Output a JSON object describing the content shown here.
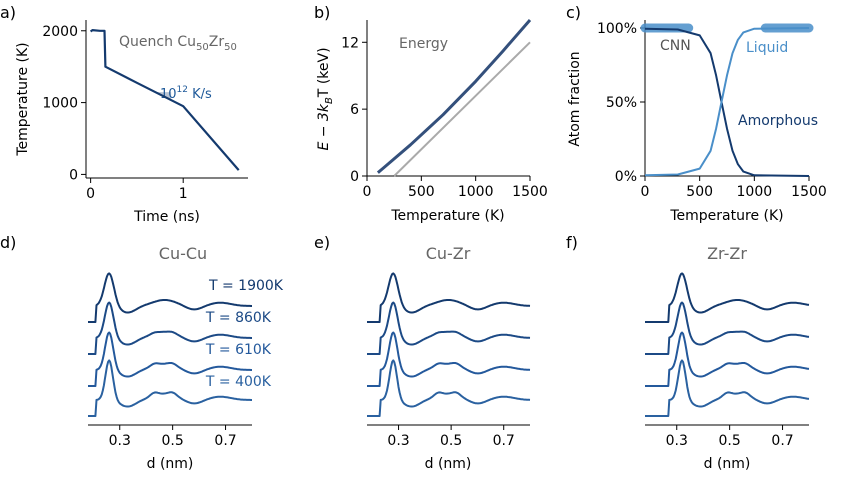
{
  "colors": {
    "dark": "#143a6e",
    "mid": "#2a61a0",
    "light": "#4a8fc9",
    "grey": "#aaaaaa",
    "annot_grey": "#666666",
    "annot_blue": "#1f5a9a"
  },
  "chart_data": [
    {
      "id": "a",
      "type": "line",
      "panel_label": "a)",
      "title_parts": [
        "Quench Cu",
        "50",
        "Zr",
        "50"
      ],
      "xlabel": "Time (ns)",
      "ylabel": "Temperature (K)",
      "xlim": [
        -0.05,
        1.7
      ],
      "ylim": [
        -50,
        2150
      ],
      "xticks": [
        0,
        1
      ],
      "yticks": [
        0,
        1000,
        2000
      ],
      "rate_label_parts": [
        "10",
        "12",
        " K/s"
      ],
      "series": [
        {
          "name": "quench",
          "x": [
            0.0,
            0.02,
            0.1,
            0.15,
            0.16,
            0.5,
            1.0,
            1.6
          ],
          "y": [
            1990,
            2010,
            2000,
            2000,
            1500,
            1275,
            950,
            60
          ]
        }
      ]
    },
    {
      "id": "b",
      "type": "line",
      "panel_label": "b)",
      "annotation": "Energy",
      "xlabel": "Temperature (K)",
      "ylabel_parts": [
        "E − 3k",
        "B",
        "T (keV)"
      ],
      "xlim": [
        0,
        1500
      ],
      "ylim": [
        0,
        14
      ],
      "xticks": [
        0,
        500,
        1000,
        1500
      ],
      "yticks": [
        0,
        6,
        12
      ],
      "series": [
        {
          "name": "reference",
          "x": [
            250,
            1500
          ],
          "y": [
            0,
            12.0
          ]
        },
        {
          "name": "energy",
          "x": [
            100,
            400,
            700,
            1000,
            1250,
            1500
          ],
          "y": [
            0.3,
            2.8,
            5.5,
            8.5,
            11.2,
            14.0
          ]
        }
      ]
    },
    {
      "id": "c",
      "type": "line",
      "panel_label": "c)",
      "xlabel": "Temperature (K)",
      "ylabel": "Atom fraction",
      "xlim": [
        0,
        1500
      ],
      "ylim": [
        0,
        1.05
      ],
      "xticks": [
        0,
        500,
        1000,
        1500
      ],
      "yticks": [
        0,
        0.5,
        1.0
      ],
      "ytick_labels": [
        "0%",
        "50%",
        "100%"
      ],
      "labels": {
        "cnn": "CNN",
        "liquid": "Liquid",
        "amorphous": "Amorphous"
      },
      "series": [
        {
          "name": "Amorphous",
          "x": [
            0,
            300,
            500,
            600,
            650,
            700,
            750,
            800,
            850,
            900,
            1000,
            1500
          ],
          "y": [
            0.995,
            0.99,
            0.95,
            0.83,
            0.68,
            0.5,
            0.32,
            0.17,
            0.08,
            0.03,
            0.005,
            0.0
          ]
        },
        {
          "name": "Liquid",
          "x": [
            0,
            300,
            500,
            600,
            650,
            700,
            750,
            800,
            850,
            900,
            1000,
            1500
          ],
          "y": [
            0.005,
            0.01,
            0.05,
            0.17,
            0.32,
            0.5,
            0.68,
            0.83,
            0.92,
            0.97,
            0.995,
            1.0
          ]
        }
      ],
      "training_bands": [
        {
          "name": "CNN training",
          "x": [
            0,
            400
          ],
          "y": 1.0
        },
        {
          "name": "Liquid training",
          "x": [
            1100,
            1500
          ],
          "y": 1.0
        }
      ]
    },
    {
      "id": "d",
      "type": "line",
      "panel_label": "d)",
      "title": "Cu-Cu",
      "xlabel": "d (nm)",
      "xlim": [
        0.18,
        0.8
      ],
      "xticks": [
        0.3,
        0.5,
        0.7
      ],
      "xtick_labels": [
        "0.3",
        "0.5",
        "0.7"
      ],
      "peak": 0.26,
      "temperatures": [
        "T = 1900K",
        "T = 860K",
        "T = 610K",
        "T = 400K"
      ]
    },
    {
      "id": "e",
      "type": "line",
      "panel_label": "e)",
      "title": "Cu-Zr",
      "xlabel": "d (nm)",
      "xlim": [
        0.18,
        0.8
      ],
      "xticks": [
        0.3,
        0.5,
        0.7
      ],
      "xtick_labels": [
        "0.3",
        "0.5",
        "0.7"
      ],
      "peak": 0.28
    },
    {
      "id": "f",
      "type": "line",
      "panel_label": "f)",
      "title": "Zr-Zr",
      "xlabel": "d (nm)",
      "xlim": [
        0.18,
        0.8
      ],
      "xticks": [
        0.3,
        0.5,
        0.7
      ],
      "xtick_labels": [
        "0.3",
        "0.5",
        "0.7"
      ],
      "peak": 0.32
    }
  ]
}
